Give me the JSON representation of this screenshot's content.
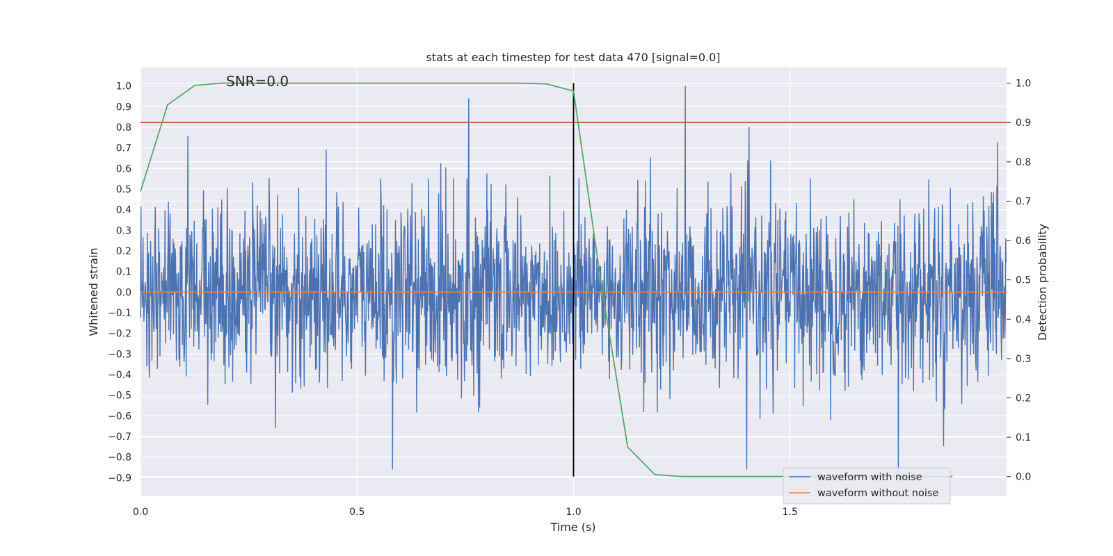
{
  "chart_data": {
    "type": "line",
    "title": "stats at each timestep for test data 470 [signal=0.0]",
    "annotation": "SNR=0.0",
    "xlabel": "Time (s)",
    "ylabel_left": "Whitened strain",
    "ylabel_right": "Detection probability",
    "xlim": [
      0.0,
      2.0
    ],
    "ylim_left": [
      -0.99,
      1.09
    ],
    "ylim_right": [
      -0.05,
      1.04
    ],
    "x_ticks": [
      0.0,
      0.5,
      1.0,
      1.5
    ],
    "x_tick_labels": [
      "0.0",
      "0.5",
      "1.0",
      "1.5"
    ],
    "y_ticks_left": [
      1.0,
      0.9,
      0.8,
      0.7,
      0.6,
      0.5,
      0.4,
      0.3,
      0.2,
      0.1,
      0.0,
      -0.1,
      -0.2,
      -0.3,
      -0.4,
      -0.5,
      -0.6,
      -0.7,
      -0.8,
      -0.9
    ],
    "y_tick_labels_left": [
      "1.0",
      "0.9",
      "0.8",
      "0.7",
      "0.6",
      "0.5",
      "0.4",
      "0.3",
      "0.2",
      "0.1",
      "0.0",
      "−0.1",
      "−0.2",
      "−0.3",
      "−0.4",
      "−0.5",
      "−0.6",
      "−0.7",
      "−0.8",
      "−0.9"
    ],
    "y_ticks_right": [
      1.0,
      0.9,
      0.8,
      0.7,
      0.6,
      0.5,
      0.4,
      0.3,
      0.2,
      0.1,
      0.0
    ],
    "y_tick_labels_right": [
      "1.0",
      "0.9",
      "0.8",
      "0.7",
      "0.6",
      "0.5",
      "0.4",
      "0.3",
      "0.2",
      "0.1",
      "0.0"
    ],
    "series": [
      {
        "name": "waveform with noise",
        "axis": "left",
        "color": "#4c72b0",
        "kind": "noise",
        "samples": 2048,
        "noise_std": 0.22,
        "notable_peaks": [
          {
            "x": 0.758,
            "y": 0.94
          },
          {
            "x": 1.258,
            "y": 1.0
          },
          {
            "x": 0.582,
            "y": -0.86
          },
          {
            "x": 1.4,
            "y": -0.86
          },
          {
            "x": 1.75,
            "y": -0.9
          }
        ]
      },
      {
        "name": "waveform without noise",
        "axis": "left",
        "color": "#dd8452",
        "x": [
          0.0,
          2.0
        ],
        "y": [
          0.0,
          0.0
        ]
      },
      {
        "name": "detection probability",
        "axis": "right",
        "color": "#55a868",
        "x": [
          0.0,
          0.0625,
          0.125,
          0.1875,
          0.25,
          0.3125,
          0.375,
          0.4375,
          0.5,
          0.5625,
          0.625,
          0.6875,
          0.75,
          0.8125,
          0.875,
          0.9375,
          1.0,
          1.0625,
          1.125,
          1.1875,
          1.25,
          1.3125,
          1.375,
          1.4375,
          1.5,
          1.5625,
          1.625,
          1.6875,
          1.75,
          1.8125,
          1.875
        ],
        "y": [
          0.725,
          0.945,
          0.994,
          1.0,
          1.0,
          1.0,
          1.0,
          1.0,
          1.0,
          1.0,
          1.0,
          1.0,
          1.0,
          1.0,
          1.0,
          0.998,
          0.98,
          0.5,
          0.075,
          0.005,
          0.0,
          0.0,
          0.0,
          0.0,
          0.0,
          0.0,
          0.0,
          0.0,
          0.0,
          0.0,
          0.0
        ]
      }
    ],
    "reference_lines": [
      {
        "name": "threshold",
        "orientation": "horizontal",
        "axis": "right",
        "value": 0.9,
        "color": "#c44e52"
      },
      {
        "name": "event-time",
        "orientation": "vertical",
        "x": 1.0,
        "y_from": 0.0,
        "y_to": 1.0,
        "axis": "right",
        "color": "#000000"
      }
    ],
    "legend": {
      "placement": "bottom-right",
      "entries": [
        {
          "label": "waveform with noise",
          "color": "#4c72b0"
        },
        {
          "label": "waveform without noise",
          "color": "#dd8452"
        }
      ]
    },
    "background": "#eaeaf2",
    "grid": true
  }
}
